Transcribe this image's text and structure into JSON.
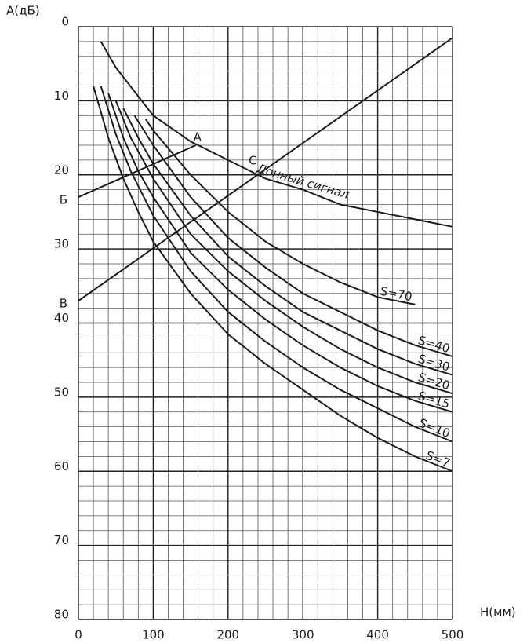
{
  "chart_data": {
    "type": "line",
    "x_label": "Н(мм)",
    "y_label": "А(дБ)",
    "xlim": [
      0,
      500
    ],
    "ylim": [
      0,
      80
    ],
    "y_inverted": true,
    "xticks": [
      0,
      100,
      200,
      300,
      400,
      500
    ],
    "yticks": [
      0,
      10,
      20,
      30,
      40,
      50,
      60,
      70,
      80
    ],
    "x_minor_ticks": [
      0,
      20,
      40,
      60,
      80,
      100,
      120,
      140,
      160,
      180,
      200,
      220,
      240,
      260,
      280,
      300,
      320,
      340,
      360,
      380,
      400,
      420,
      440,
      460,
      480,
      500
    ],
    "y_minor_ticks": [
      0,
      2,
      4,
      6,
      8,
      10,
      12,
      14,
      16,
      18,
      20,
      22,
      24,
      26,
      28,
      30,
      32,
      34,
      36,
      38,
      40,
      42,
      44,
      46,
      48,
      50,
      52,
      54,
      56,
      58,
      60,
      62,
      64,
      66,
      68,
      70,
      72,
      74,
      76,
      78,
      80
    ],
    "grid": true,
    "color": "#1c1c1c",
    "series": [
      {
        "name": "Донный сигнал",
        "x": [
          30,
          50,
          100,
          150,
          200,
          250,
          300,
          350,
          400,
          450,
          500
        ],
        "values": [
          2,
          5.5,
          12,
          15.5,
          18,
          20.5,
          22,
          24,
          25,
          26,
          27
        ]
      },
      {
        "name": "S=70",
        "x": [
          90,
          100,
          150,
          200,
          250,
          300,
          350,
          400,
          450
        ],
        "values": [
          12.5,
          14,
          20,
          25,
          29,
          32,
          34.5,
          36.5,
          37.5
        ]
      },
      {
        "name": "S=40",
        "x": [
          75,
          100,
          150,
          200,
          250,
          300,
          350,
          400,
          450,
          500
        ],
        "values": [
          12,
          16,
          23,
          28.5,
          32.5,
          36,
          38.5,
          41,
          43,
          44.5
        ]
      },
      {
        "name": "S=30",
        "x": [
          60,
          80,
          100,
          150,
          200,
          250,
          300,
          350,
          400,
          450,
          500
        ],
        "values": [
          11,
          15,
          18.5,
          25.5,
          31,
          35,
          38.5,
          41,
          43.5,
          45.5,
          47
        ]
      },
      {
        "name": "S=20",
        "x": [
          50,
          70,
          100,
          150,
          200,
          250,
          300,
          350,
          400,
          450,
          500
        ],
        "values": [
          10,
          15,
          20.5,
          28,
          33,
          37,
          40.5,
          43.5,
          46,
          48,
          49.5
        ]
      },
      {
        "name": "S=15",
        "x": [
          40,
          60,
          80,
          100,
          150,
          200,
          250,
          300,
          350,
          400,
          450,
          500
        ],
        "values": [
          9,
          15,
          19.5,
          23,
          30.5,
          35.5,
          39.5,
          43,
          46,
          48.5,
          50.5,
          52
        ]
      },
      {
        "name": "S=10",
        "x": [
          30,
          50,
          70,
          100,
          150,
          200,
          250,
          300,
          350,
          400,
          450,
          500
        ],
        "values": [
          8,
          14.5,
          19.5,
          25.5,
          33,
          38.5,
          42.5,
          46,
          49,
          51.5,
          54,
          56
        ]
      },
      {
        "name": "S=7",
        "x": [
          20,
          40,
          60,
          80,
          100,
          150,
          200,
          250,
          300,
          350,
          400,
          450,
          500
        ],
        "values": [
          8,
          15,
          20.5,
          25,
          29,
          36,
          41.5,
          45.5,
          49,
          52.5,
          55.5,
          58,
          60
        ]
      },
      {
        "x": [
          0,
          157
        ],
        "values": [
          23,
          16
        ]
      },
      {
        "x": [
          0,
          500
        ],
        "values": [
          37,
          1.5
        ]
      }
    ],
    "annotations": [
      {
        "text": "А",
        "x": 157,
        "y": 16
      },
      {
        "text": "С",
        "x": 231,
        "y": 19.2
      },
      {
        "text": "Б",
        "x": 0,
        "y": 23
      },
      {
        "text": "В",
        "x": 0,
        "y": 37
      }
    ]
  }
}
